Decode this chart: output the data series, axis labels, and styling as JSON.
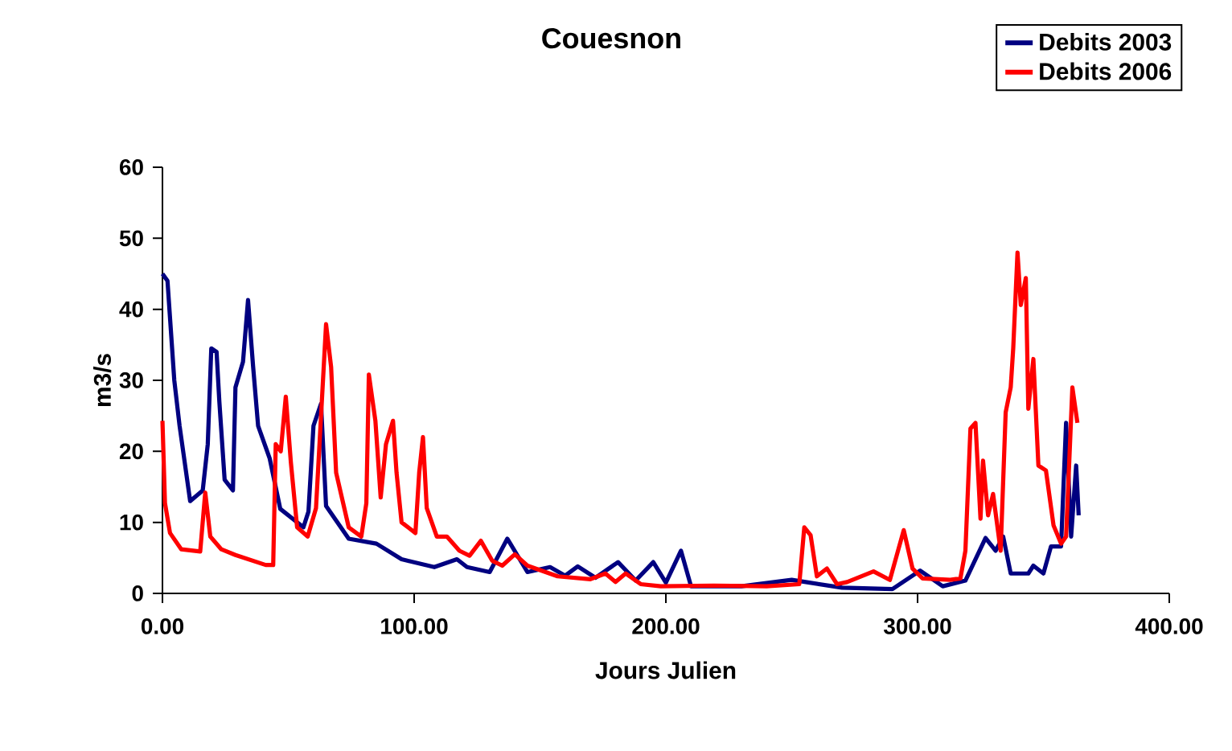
{
  "chart_data": {
    "type": "line",
    "title": "Couesnon",
    "xlabel": "Jours Julien",
    "ylabel": "m3/s",
    "xlim": [
      0,
      400
    ],
    "ylim": [
      0,
      60
    ],
    "xticks": [
      {
        "value": 0,
        "label": "0.00"
      },
      {
        "value": 100,
        "label": "100.00"
      },
      {
        "value": 200,
        "label": "200.00"
      },
      {
        "value": 300,
        "label": "300.00"
      },
      {
        "value": 400,
        "label": "400.00"
      }
    ],
    "yticks": [
      0,
      10,
      20,
      30,
      40,
      50,
      60
    ],
    "legend": "top right",
    "grid": false,
    "marker": "none",
    "line_style": "solid",
    "series": [
      {
        "name": "Debits 2003",
        "color": "#000080",
        "x": [
          0,
          2,
          4.7,
          6.8,
          11,
          16,
          18,
          19.4,
          21.5,
          22.6,
          24.7,
          28,
          29,
          32,
          34,
          36,
          38,
          42.6,
          46.8,
          56,
          58,
          60,
          63,
          65,
          74,
          85,
          95,
          108,
          117,
          121,
          130,
          137,
          145,
          154,
          160,
          165,
          172,
          181,
          188,
          195,
          200,
          206,
          210,
          230,
          250,
          270,
          290,
          301,
          310,
          319,
          327,
          331,
          334,
          337,
          344,
          346,
          350,
          353,
          357,
          359,
          361,
          363,
          364
        ],
        "values": [
          45,
          44,
          30,
          23.6,
          13,
          14.5,
          21,
          34.5,
          34,
          27,
          16,
          14.5,
          29,
          32.6,
          41.3,
          32,
          23.6,
          19,
          11.9,
          9.3,
          11.5,
          23.6,
          26.7,
          12.3,
          7.7,
          7,
          4.8,
          3.7,
          4.8,
          3.7,
          3,
          7.7,
          3,
          3.7,
          2.5,
          3.8,
          2.2,
          4.4,
          1.8,
          4.4,
          1.5,
          6,
          1,
          1,
          1.9,
          0.8,
          0.6,
          3.2,
          1,
          1.8,
          7.8,
          6,
          8,
          2.8,
          2.8,
          3.9,
          2.8,
          6.6,
          6.6,
          24,
          8,
          18,
          11
        ]
      },
      {
        "name": "Debits 2006",
        "color": "#ff0000",
        "x": [
          0,
          1,
          3,
          7.5,
          15,
          17,
          19,
          23.4,
          29,
          41,
          44,
          45,
          47,
          49,
          51,
          53.5,
          57.7,
          61,
          65,
          67,
          69,
          74,
          79,
          81,
          82,
          84.6,
          86.7,
          88.8,
          91.6,
          93,
          95,
          100.5,
          102,
          103.5,
          105,
          109,
          113,
          118,
          122,
          126.5,
          131,
          135,
          140,
          145,
          157,
          170,
          176,
          180,
          184,
          190,
          198,
          219,
          240,
          253,
          255,
          257.5,
          260,
          264,
          268,
          272,
          282.5,
          289,
          294.5,
          298,
          302,
          313,
          317,
          319,
          321,
          323,
          325,
          326,
          328,
          330,
          333,
          335,
          337,
          338,
          339.7,
          341,
          343,
          344,
          346,
          348,
          351,
          354,
          357,
          359,
          361.5,
          363.5
        ],
        "values": [
          24.3,
          12.7,
          8.5,
          6.2,
          5.9,
          14.2,
          8,
          6.2,
          5.4,
          4,
          4,
          21,
          20,
          27.7,
          18.5,
          9.3,
          8,
          12,
          37.9,
          31.9,
          17,
          9.3,
          8,
          12.7,
          30.8,
          24.3,
          13.5,
          21,
          24.3,
          17,
          10,
          8.5,
          17,
          22,
          12,
          8,
          8,
          6,
          5.3,
          7.4,
          4.6,
          3.9,
          5.5,
          3.9,
          2.4,
          2,
          2.8,
          1.6,
          2.8,
          1.3,
          1,
          1.1,
          1,
          1.3,
          9.3,
          8.2,
          2.4,
          3.5,
          1.3,
          1.6,
          3.1,
          1.9,
          8.9,
          3.5,
          2.1,
          1.9,
          2.1,
          6,
          23.2,
          24,
          10.5,
          18.7,
          11,
          14,
          6,
          25.5,
          29,
          34.5,
          48,
          40.6,
          44.4,
          26,
          33,
          18,
          17.3,
          9.6,
          7,
          8,
          29,
          24
        ]
      }
    ]
  }
}
